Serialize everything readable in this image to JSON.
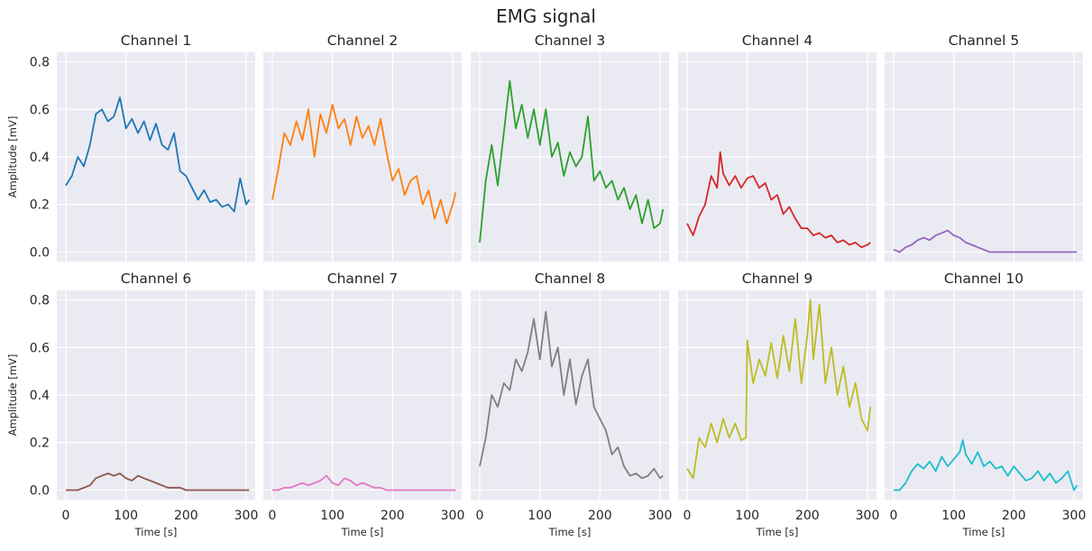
{
  "chart_data": {
    "type": "line",
    "title": "EMG signal",
    "xlabel": "Time [s]",
    "ylabel": "Amplitude [mV]",
    "xlim": [
      -15,
      315
    ],
    "ylim": [
      -0.04,
      0.84
    ],
    "xticks": [
      0,
      100,
      200,
      300
    ],
    "yticks": [
      0.0,
      0.2,
      0.4,
      0.6,
      0.8
    ],
    "grid": true,
    "panels": [
      {
        "title": "Channel 1",
        "color": "#1f77b4",
        "x": [
          0,
          10,
          20,
          30,
          40,
          50,
          60,
          70,
          80,
          90,
          100,
          110,
          120,
          130,
          140,
          150,
          160,
          170,
          180,
          190,
          200,
          210,
          220,
          230,
          240,
          250,
          260,
          270,
          280,
          290,
          300,
          305
        ],
        "y": [
          0.28,
          0.32,
          0.4,
          0.36,
          0.45,
          0.58,
          0.6,
          0.55,
          0.57,
          0.65,
          0.52,
          0.56,
          0.5,
          0.55,
          0.47,
          0.54,
          0.45,
          0.43,
          0.5,
          0.34,
          0.32,
          0.27,
          0.22,
          0.26,
          0.21,
          0.22,
          0.19,
          0.2,
          0.17,
          0.31,
          0.2,
          0.22
        ]
      },
      {
        "title": "Channel 2",
        "color": "#ff7f0e",
        "x": [
          0,
          10,
          20,
          30,
          40,
          50,
          60,
          70,
          80,
          90,
          100,
          110,
          120,
          130,
          140,
          150,
          160,
          170,
          180,
          190,
          200,
          210,
          220,
          230,
          240,
          250,
          260,
          270,
          280,
          290,
          300,
          305
        ],
        "y": [
          0.22,
          0.35,
          0.5,
          0.45,
          0.55,
          0.47,
          0.6,
          0.4,
          0.58,
          0.5,
          0.62,
          0.52,
          0.56,
          0.45,
          0.57,
          0.48,
          0.53,
          0.45,
          0.56,
          0.42,
          0.3,
          0.35,
          0.24,
          0.3,
          0.32,
          0.2,
          0.26,
          0.14,
          0.22,
          0.12,
          0.2,
          0.25
        ]
      },
      {
        "title": "Channel 3",
        "color": "#2ca02c",
        "x": [
          0,
          10,
          20,
          30,
          40,
          50,
          60,
          70,
          80,
          90,
          100,
          110,
          120,
          130,
          140,
          150,
          160,
          170,
          180,
          190,
          200,
          210,
          220,
          230,
          240,
          250,
          260,
          270,
          280,
          290,
          300,
          305
        ],
        "y": [
          0.04,
          0.3,
          0.45,
          0.28,
          0.5,
          0.72,
          0.52,
          0.62,
          0.48,
          0.6,
          0.45,
          0.6,
          0.4,
          0.46,
          0.32,
          0.42,
          0.36,
          0.4,
          0.57,
          0.3,
          0.34,
          0.27,
          0.3,
          0.22,
          0.27,
          0.18,
          0.24,
          0.12,
          0.22,
          0.1,
          0.12,
          0.18
        ]
      },
      {
        "title": "Channel 4",
        "color": "#d62728",
        "x": [
          0,
          10,
          20,
          30,
          40,
          50,
          55,
          60,
          70,
          80,
          90,
          100,
          110,
          120,
          130,
          140,
          150,
          160,
          170,
          180,
          190,
          200,
          210,
          220,
          230,
          240,
          250,
          260,
          270,
          280,
          290,
          300,
          305
        ],
        "y": [
          0.12,
          0.07,
          0.15,
          0.2,
          0.32,
          0.27,
          0.42,
          0.33,
          0.28,
          0.32,
          0.27,
          0.31,
          0.32,
          0.27,
          0.29,
          0.22,
          0.24,
          0.16,
          0.19,
          0.14,
          0.1,
          0.1,
          0.07,
          0.08,
          0.06,
          0.07,
          0.04,
          0.05,
          0.03,
          0.04,
          0.02,
          0.03,
          0.04
        ]
      },
      {
        "title": "Channel 5",
        "color": "#9467bd",
        "x": [
          0,
          10,
          20,
          30,
          40,
          50,
          60,
          70,
          80,
          90,
          100,
          110,
          120,
          130,
          140,
          150,
          160,
          180,
          200,
          220,
          240,
          260,
          280,
          300,
          305
        ],
        "y": [
          0.01,
          0.0,
          0.02,
          0.03,
          0.05,
          0.06,
          0.05,
          0.07,
          0.08,
          0.09,
          0.07,
          0.06,
          0.04,
          0.03,
          0.02,
          0.01,
          0.0,
          0.0,
          0.0,
          0.0,
          0.0,
          0.0,
          0.0,
          0.0,
          0.0
        ]
      },
      {
        "title": "Channel 6",
        "color": "#8c564b",
        "x": [
          0,
          10,
          20,
          30,
          40,
          50,
          60,
          70,
          80,
          90,
          100,
          110,
          120,
          130,
          140,
          150,
          160,
          170,
          180,
          190,
          200,
          220,
          240,
          260,
          280,
          300,
          305
        ],
        "y": [
          0.0,
          0.0,
          0.0,
          0.01,
          0.02,
          0.05,
          0.06,
          0.07,
          0.06,
          0.07,
          0.05,
          0.04,
          0.06,
          0.05,
          0.04,
          0.03,
          0.02,
          0.01,
          0.01,
          0.01,
          0.0,
          0.0,
          0.0,
          0.0,
          0.0,
          0.0,
          0.0
        ]
      },
      {
        "title": "Channel 7",
        "color": "#e377c2",
        "x": [
          0,
          10,
          20,
          30,
          40,
          50,
          60,
          70,
          80,
          90,
          100,
          110,
          120,
          130,
          140,
          150,
          160,
          170,
          180,
          190,
          200,
          220,
          240,
          260,
          280,
          300,
          305
        ],
        "y": [
          0.0,
          0.0,
          0.01,
          0.01,
          0.02,
          0.03,
          0.02,
          0.03,
          0.04,
          0.06,
          0.03,
          0.02,
          0.05,
          0.04,
          0.02,
          0.03,
          0.02,
          0.01,
          0.01,
          0.0,
          0.0,
          0.0,
          0.0,
          0.0,
          0.0,
          0.0,
          0.0
        ]
      },
      {
        "title": "Channel 8",
        "color": "#7f7f7f",
        "x": [
          0,
          10,
          20,
          30,
          40,
          50,
          60,
          70,
          80,
          90,
          100,
          110,
          120,
          130,
          140,
          150,
          160,
          170,
          180,
          190,
          200,
          210,
          220,
          230,
          240,
          250,
          260,
          270,
          280,
          290,
          300,
          305
        ],
        "y": [
          0.1,
          0.22,
          0.4,
          0.35,
          0.45,
          0.42,
          0.55,
          0.5,
          0.58,
          0.72,
          0.55,
          0.75,
          0.52,
          0.6,
          0.4,
          0.55,
          0.36,
          0.48,
          0.55,
          0.35,
          0.3,
          0.25,
          0.15,
          0.18,
          0.1,
          0.06,
          0.07,
          0.05,
          0.06,
          0.09,
          0.05,
          0.06
        ]
      },
      {
        "title": "Channel 9",
        "color": "#bcbd22",
        "x": [
          0,
          10,
          20,
          30,
          40,
          50,
          60,
          70,
          80,
          90,
          98,
          100,
          110,
          120,
          130,
          140,
          150,
          160,
          170,
          180,
          190,
          200,
          205,
          210,
          220,
          230,
          240,
          250,
          260,
          270,
          280,
          290,
          300,
          305
        ],
        "y": [
          0.09,
          0.05,
          0.22,
          0.18,
          0.28,
          0.2,
          0.3,
          0.22,
          0.28,
          0.21,
          0.22,
          0.63,
          0.45,
          0.55,
          0.48,
          0.62,
          0.47,
          0.65,
          0.5,
          0.72,
          0.45,
          0.65,
          0.8,
          0.55,
          0.78,
          0.45,
          0.6,
          0.4,
          0.52,
          0.35,
          0.45,
          0.3,
          0.25,
          0.35
        ]
      },
      {
        "title": "Channel 10",
        "color": "#17becf",
        "x": [
          0,
          10,
          20,
          30,
          40,
          50,
          60,
          70,
          80,
          90,
          100,
          110,
          115,
          120,
          130,
          140,
          150,
          160,
          170,
          180,
          190,
          200,
          210,
          220,
          230,
          240,
          250,
          260,
          270,
          280,
          290,
          300,
          305
        ],
        "y": [
          0.0,
          0.0,
          0.03,
          0.08,
          0.11,
          0.09,
          0.12,
          0.08,
          0.14,
          0.1,
          0.13,
          0.16,
          0.21,
          0.15,
          0.11,
          0.16,
          0.1,
          0.12,
          0.09,
          0.1,
          0.06,
          0.1,
          0.07,
          0.04,
          0.05,
          0.08,
          0.04,
          0.07,
          0.03,
          0.05,
          0.08,
          0.0,
          0.02
        ]
      }
    ]
  }
}
